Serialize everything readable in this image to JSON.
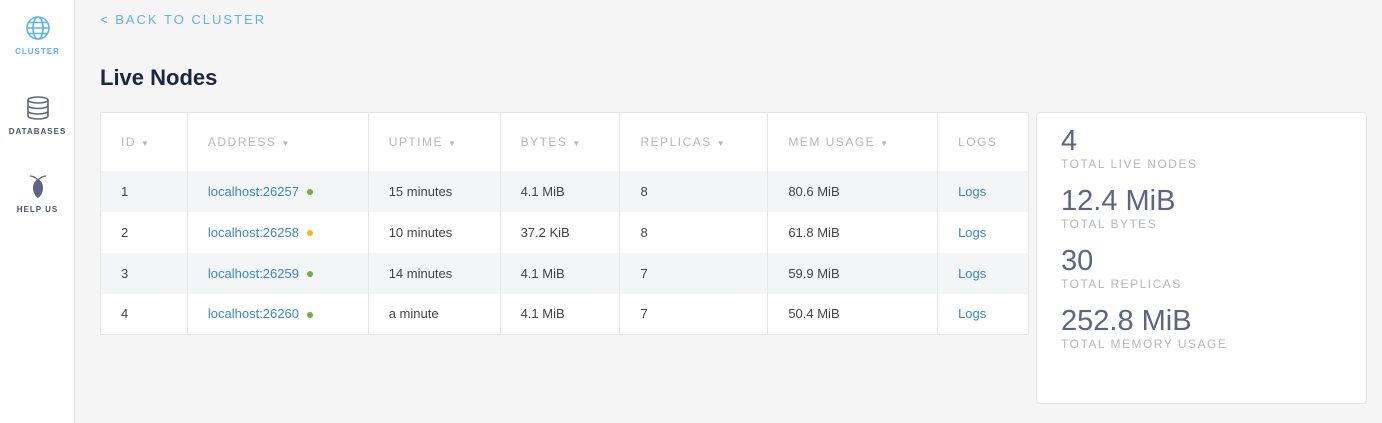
{
  "sidebar": {
    "items": [
      {
        "label": "CLUSTER",
        "icon": "globe-icon",
        "active": true
      },
      {
        "label": "DATABASES",
        "icon": "database-icon"
      },
      {
        "label": "HELP US",
        "icon": "cockroach-icon"
      }
    ]
  },
  "back_link": "< BACK TO CLUSTER",
  "title": "Live Nodes",
  "table": {
    "headers": [
      "ID",
      "ADDRESS",
      "UPTIME",
      "BYTES",
      "REPLICAS",
      "MEM USAGE",
      "LOGS"
    ],
    "sort_arrow": "▼",
    "rows": [
      {
        "id": "1",
        "address": "localhost:26257",
        "status_color": "#6fb43f",
        "uptime": "15 minutes",
        "bytes": "4.1 MiB",
        "replicas": "8",
        "mem": "80.6 MiB",
        "logs": "Logs"
      },
      {
        "id": "2",
        "address": "localhost:26258",
        "status_color": "#f5b921",
        "uptime": "10 minutes",
        "bytes": "37.2 KiB",
        "replicas": "8",
        "mem": "61.8 MiB",
        "logs": "Logs"
      },
      {
        "id": "3",
        "address": "localhost:26259",
        "status_color": "#6fb43f",
        "uptime": "14 minutes",
        "bytes": "4.1 MiB",
        "replicas": "7",
        "mem": "59.9 MiB",
        "logs": "Logs"
      },
      {
        "id": "4",
        "address": "localhost:26260",
        "status_color": "#6fb43f",
        "uptime": "a minute",
        "bytes": "4.1 MiB",
        "replicas": "7",
        "mem": "50.4 MiB",
        "logs": "Logs"
      }
    ]
  },
  "stats": [
    {
      "value": "4",
      "label": "TOTAL LIVE NODES"
    },
    {
      "value": "12.4 MiB",
      "label": "TOTAL BYTES"
    },
    {
      "value": "30",
      "label": "TOTAL REPLICAS"
    },
    {
      "value": "252.8 MiB",
      "label": "TOTAL MEMORY USAGE"
    }
  ]
}
